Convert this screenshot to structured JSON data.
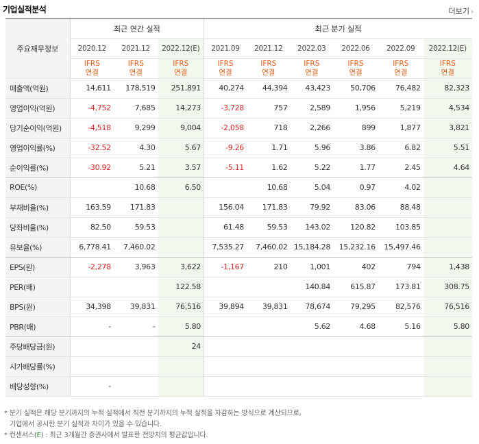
{
  "header": {
    "title": "기업실적분석",
    "more_label": "더보기",
    "more_icon": "chevron-right-icon"
  },
  "table": {
    "corner_label": "주요재무정보",
    "groups": {
      "annual": "최근 연간 실적",
      "quarter": "최근 분기 실적"
    },
    "periods": [
      "2020.12",
      "2021.12",
      "2022.12(E)",
      "2021.09",
      "2021.12",
      "2022.03",
      "2022.06",
      "2022.09",
      "2022.12(E)"
    ],
    "ifrs_line1": "IFRS",
    "ifrs_line2": "연결",
    "rows": [
      {
        "label": "매출액(억원)",
        "values": [
          "14,611",
          "178,519",
          "251,891",
          "40,274",
          "44,394",
          "43,423",
          "50,706",
          "76,482",
          "82,323"
        ]
      },
      {
        "label": "영업이익(억원)",
        "values": [
          "-4,752",
          "7,685",
          "14,273",
          "-3,728",
          "757",
          "2,589",
          "1,956",
          "5,219",
          "4,534"
        ]
      },
      {
        "label": "당기순이익(억원)",
        "values": [
          "-4,518",
          "9,299",
          "9,004",
          "-2,058",
          "718",
          "2,266",
          "899",
          "1,877",
          "3,821"
        ]
      },
      {
        "label": "영업이익률(%)",
        "values": [
          "-32.52",
          "4.30",
          "5.67",
          "-9.26",
          "1.71",
          "5.96",
          "3.86",
          "6.82",
          "5.51"
        ]
      },
      {
        "label": "순이익률(%)",
        "values": [
          "-30.92",
          "5.21",
          "3.57",
          "-5.11",
          "1.62",
          "5.22",
          "1.77",
          "2.45",
          "4.64"
        ]
      },
      {
        "label": "ROE(%)",
        "values": [
          "",
          "10.68",
          "6.50",
          "",
          "10.68",
          "5.04",
          "0.97",
          "4.02",
          ""
        ]
      },
      {
        "label": "부채비율(%)",
        "values": [
          "163.59",
          "171.83",
          "",
          "156.04",
          "171.83",
          "79.92",
          "83.06",
          "88.48",
          ""
        ]
      },
      {
        "label": "당좌비율(%)",
        "values": [
          "82.50",
          "59.53",
          "",
          "61.48",
          "59.53",
          "143.02",
          "120.82",
          "103.85",
          ""
        ]
      },
      {
        "label": "유보율(%)",
        "values": [
          "6,778.41",
          "7,460.02",
          "",
          "7,535.27",
          "7,460.02",
          "15,184.28",
          "15,232.16",
          "15,497.46",
          ""
        ]
      },
      {
        "label": "EPS(원)",
        "values": [
          "-2,278",
          "3,963",
          "3,622",
          "-1,167",
          "210",
          "1,001",
          "402",
          "794",
          "1,438"
        ]
      },
      {
        "label": "PER(배)",
        "values": [
          "",
          "",
          "122.58",
          "",
          "",
          "140.84",
          "615.87",
          "173.81",
          "308.75"
        ]
      },
      {
        "label": "BPS(원)",
        "values": [
          "34,398",
          "39,831",
          "76,516",
          "39,894",
          "39,831",
          "78,674",
          "79,295",
          "82,576",
          "76,516"
        ]
      },
      {
        "label": "PBR(배)",
        "values": [
          "-",
          "-",
          "5.80",
          "",
          "",
          "5.62",
          "4.68",
          "5.16",
          "5.80"
        ]
      },
      {
        "label": "주당배당금(원)",
        "values": [
          "",
          "",
          "24",
          "",
          "",
          "",
          "",
          "",
          ""
        ]
      },
      {
        "label": "시가배당률(%)",
        "values": [
          "",
          "",
          "",
          "",
          "",
          "",
          "",
          "",
          ""
        ]
      },
      {
        "label": "배당성향(%)",
        "values": [
          "-",
          "",
          "",
          "",
          "",
          "",
          "",
          "",
          ""
        ]
      }
    ]
  },
  "notes": {
    "line1": "* 분기 실적은 해당 분기까지의 누적 실적에서 직전 분기까지의 누적 실적을 차감하는 방식으로 계산되므로,",
    "line2": "기업에서 공시한 분기 실적과 차이가 있을 수 있습니다.",
    "line3_prefix": "* 컨센서스(",
    "line3_mark": "E",
    "line3_suffix": ") : 최근 3개월간 증권사에서 발표한 전망치의 평균값입니다."
  },
  "colors": {
    "negative": "#e02828",
    "ifrs": "#e8601c",
    "estimate_bg": "#f2f8ee",
    "label_bg": "#f4f4f4"
  }
}
